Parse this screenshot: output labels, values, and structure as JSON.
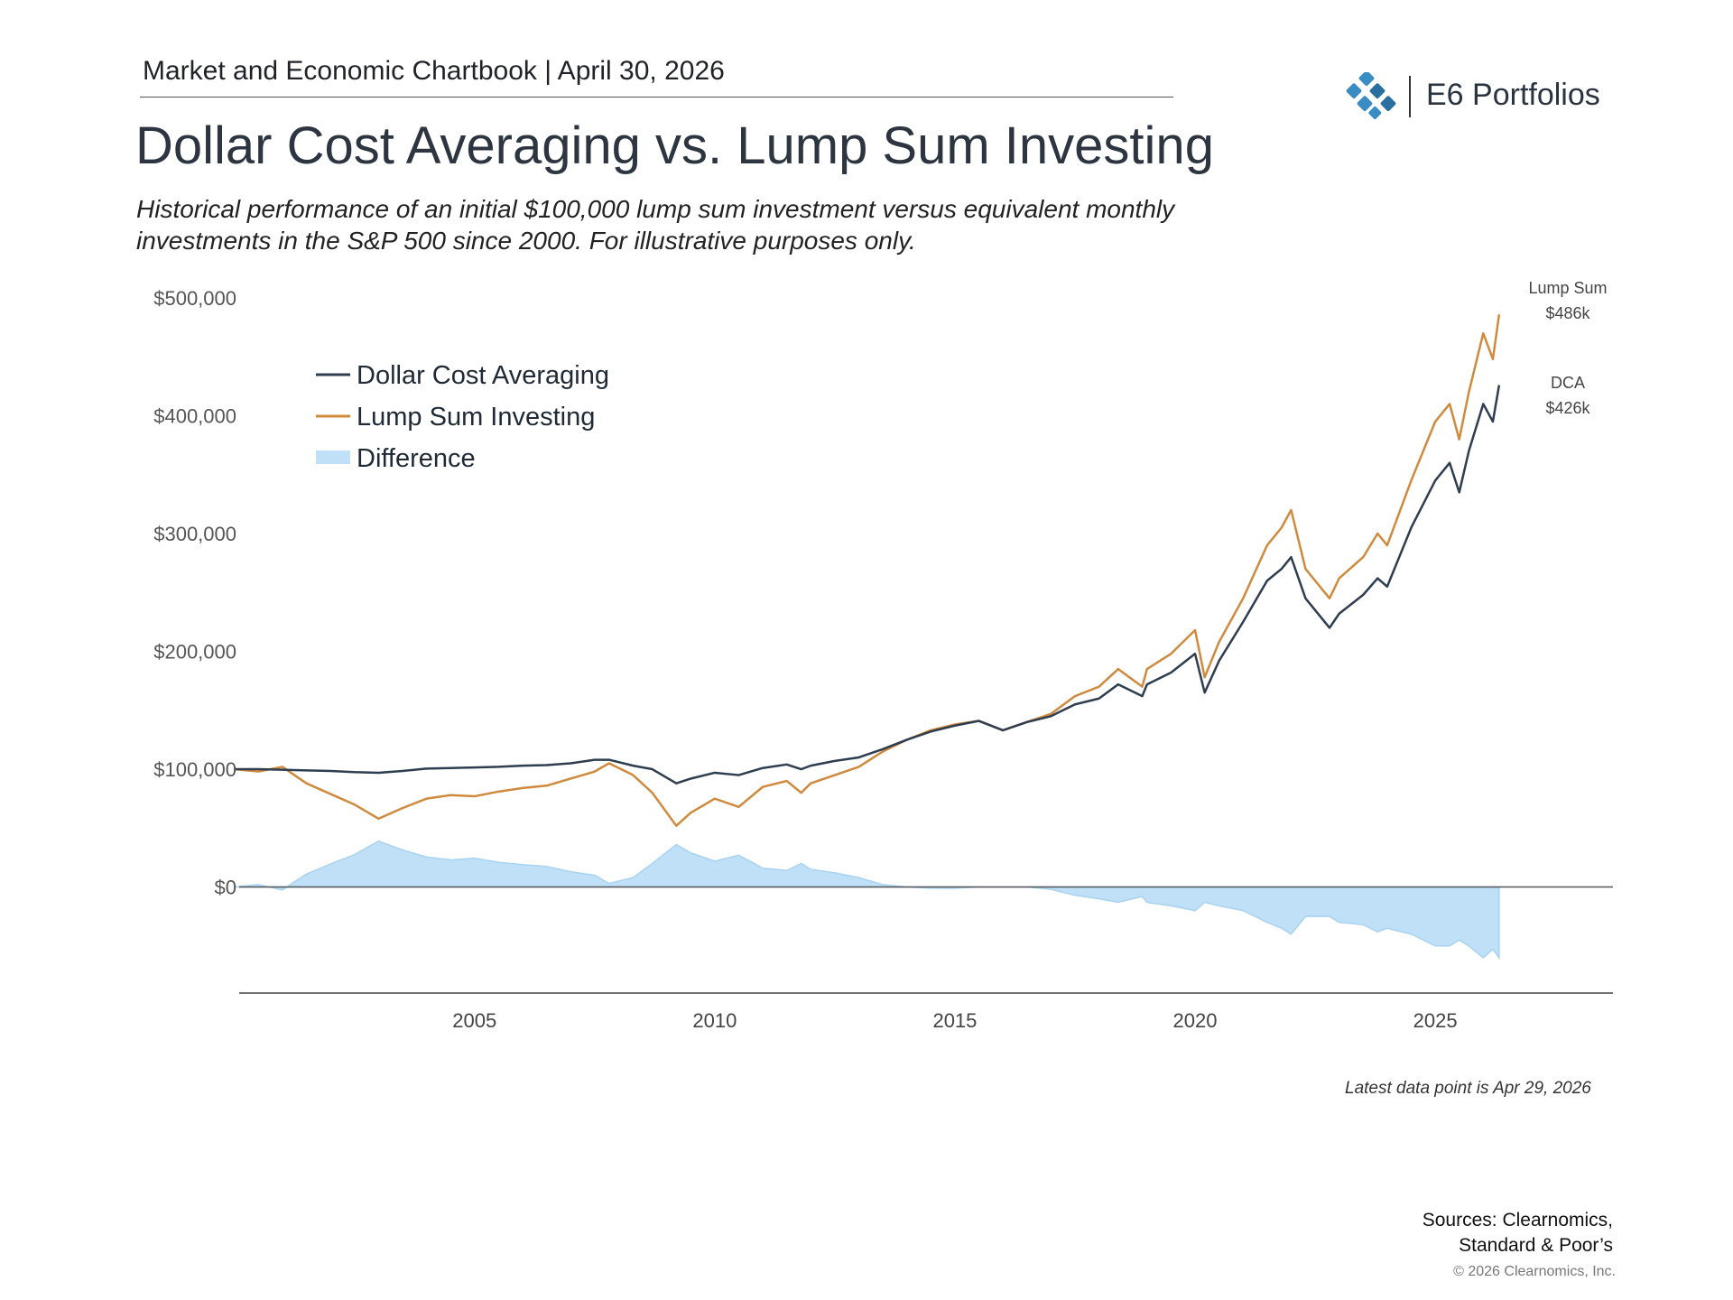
{
  "header": {
    "chartbook_label": "Market and Economic Chartbook | April 30, 2026",
    "brand_name": "E6 Portfolios",
    "brand_color": "#3a8cc4"
  },
  "title": "Dollar Cost Averaging vs. Lump Sum Investing",
  "subtitle": "Historical performance of an initial $100,000 lump sum investment versus equivalent monthly investments in the S&P 500 since 2000. For illustrative purposes only.",
  "footer": {
    "latest_note": "Latest data point is Apr 29, 2026",
    "sources_line1": "Sources: Clearnomics,",
    "sources_line2": "Standard & Poor’s",
    "copyright": "© 2026 Clearnomics, Inc."
  },
  "chart_data": {
    "type": "line",
    "xlim": [
      2000.1,
      2028.7
    ],
    "ylim": [
      -90000,
      500000
    ],
    "x_ticks": [
      2005,
      2010,
      2015,
      2020,
      2025
    ],
    "y_ticks": [
      {
        "value": 0,
        "label": "$0"
      },
      {
        "value": 100000,
        "label": "$100,000"
      },
      {
        "value": 200000,
        "label": "$200,000"
      },
      {
        "value": 300000,
        "label": "$300,000"
      },
      {
        "value": 400000,
        "label": "$400,000"
      },
      {
        "value": 500000,
        "label": "$500,000"
      }
    ],
    "legend": {
      "position": "top-left",
      "entries": [
        {
          "name": "Dollar Cost Averaging",
          "color": "#2e3d4f",
          "kind": "line"
        },
        {
          "name": "Lump Sum Investing",
          "color": "#d08a3e",
          "kind": "line"
        },
        {
          "name": "Difference",
          "color": "#bfe0f7",
          "kind": "area"
        }
      ]
    },
    "end_labels": {
      "lump_sum_label": "Lump Sum",
      "lump_sum_value": "$486k",
      "dca_label": "DCA",
      "dca_value": "$426k"
    },
    "x": [
      2000.0,
      2000.5,
      2001.0,
      2001.5,
      2002.0,
      2002.5,
      2003.0,
      2003.5,
      2004.0,
      2004.5,
      2005.0,
      2005.5,
      2006.0,
      2006.5,
      2007.0,
      2007.5,
      2007.8,
      2008.3,
      2008.7,
      2009.2,
      2009.5,
      2010.0,
      2010.5,
      2011.0,
      2011.5,
      2011.8,
      2012.0,
      2012.5,
      2013.0,
      2013.5,
      2014.0,
      2014.5,
      2015.0,
      2015.5,
      2016.0,
      2016.5,
      2017.0,
      2017.5,
      2018.0,
      2018.4,
      2018.9,
      2019.0,
      2019.5,
      2020.0,
      2020.2,
      2020.5,
      2021.0,
      2021.5,
      2021.8,
      2022.0,
      2022.3,
      2022.8,
      2023.0,
      2023.5,
      2023.8,
      2024.0,
      2024.5,
      2025.0,
      2025.3,
      2025.5,
      2025.7,
      2026.0,
      2026.2,
      2026.33
    ],
    "series": [
      {
        "name": "Dollar Cost Averaging",
        "color": "#2e3d4f",
        "values": [
          100000,
          100000,
          99500,
          99000,
          98500,
          97500,
          97000,
          98500,
          100500,
          101000,
          101500,
          102000,
          103000,
          103500,
          105000,
          108000,
          108000,
          103000,
          100000,
          88000,
          92000,
          97000,
          95000,
          101000,
          104000,
          100000,
          103000,
          107000,
          110000,
          117000,
          125000,
          132000,
          137000,
          141000,
          133000,
          140000,
          145000,
          155000,
          160000,
          172000,
          162000,
          172000,
          182000,
          198000,
          165000,
          192000,
          225000,
          260000,
          270000,
          280000,
          245000,
          220000,
          232000,
          248000,
          262000,
          255000,
          305000,
          345000,
          360000,
          335000,
          370000,
          410000,
          395000,
          426000
        ]
      },
      {
        "name": "Lump Sum Investing",
        "color": "#d08a3e",
        "values": [
          100000,
          98000,
          102000,
          88000,
          79000,
          70000,
          58000,
          67000,
          75000,
          78000,
          77000,
          81000,
          84000,
          86000,
          92000,
          98000,
          105000,
          95000,
          80000,
          52000,
          63000,
          75000,
          68000,
          85000,
          90000,
          80000,
          88000,
          95000,
          102000,
          115000,
          125000,
          133000,
          138000,
          141000,
          133000,
          140000,
          147000,
          162000,
          170000,
          185000,
          170000,
          185000,
          198000,
          218000,
          178000,
          208000,
          245000,
          290000,
          305000,
          320000,
          270000,
          245000,
          262000,
          280000,
          300000,
          290000,
          345000,
          395000,
          410000,
          380000,
          420000,
          470000,
          448000,
          486000
        ]
      },
      {
        "name": "Difference",
        "color": "#bfe0f7",
        "values": [
          0,
          2000,
          -2500,
          11000,
          19500,
          27500,
          39000,
          31500,
          25500,
          23000,
          24500,
          21000,
          19000,
          17500,
          13000,
          10000,
          3000,
          8000,
          20000,
          36000,
          29000,
          22000,
          27000,
          16000,
          14000,
          20000,
          15000,
          12000,
          8000,
          2000,
          0,
          -1000,
          -1000,
          0,
          0,
          0,
          -2000,
          -7000,
          -10000,
          -13000,
          -8000,
          -13000,
          -16000,
          -20000,
          -13000,
          -16000,
          -20000,
          -30000,
          -35000,
          -40000,
          -25000,
          -25000,
          -30000,
          -32000,
          -38000,
          -35000,
          -40000,
          -50000,
          -50000,
          -45000,
          -50000,
          -60000,
          -53000,
          -60000
        ]
      }
    ]
  }
}
